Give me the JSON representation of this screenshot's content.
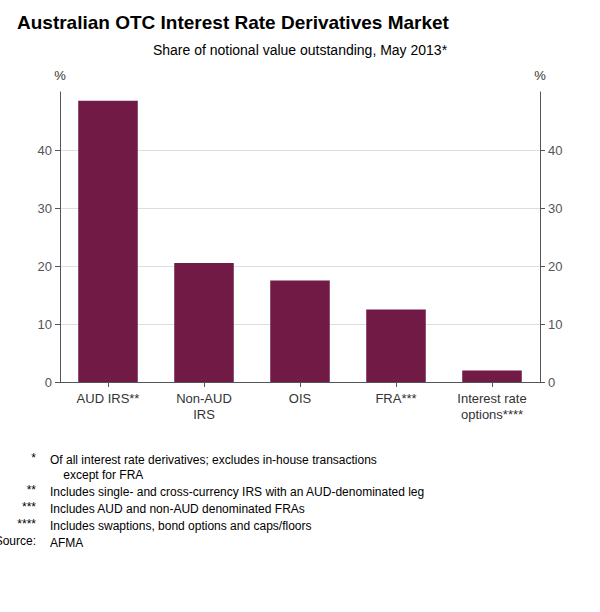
{
  "chart_data": {
    "type": "bar",
    "title": "Australian OTC Interest Rate Derivatives Market",
    "subtitle": "Share of notional value outstanding, May 2013*",
    "categories": [
      "AUD IRS**",
      "Non-AUD\nIRS",
      "OIS",
      "FRA***",
      "Interest rate\noptions****"
    ],
    "values": [
      48.5,
      20.5,
      17.5,
      12.5,
      2.0
    ],
    "color": "#701A45",
    "ylabel": "%",
    "y2label": "%",
    "ylim": [
      0,
      50
    ],
    "yticks": [
      0,
      10,
      20,
      30,
      40
    ],
    "y2lim": [
      0,
      50
    ],
    "y2ticks": [
      0,
      10,
      20,
      30,
      40
    ],
    "grid": true,
    "annotations": [
      {
        "label": "*",
        "text": "Of all interest rate derivatives; excludes in-house transactions\n    except for FRA"
      },
      {
        "label": "**",
        "text": "Includes single- and cross-currency IRS with an AUD-denominated leg"
      },
      {
        "label": "***",
        "text": "Includes AUD and non-AUD denominated FRAs"
      },
      {
        "label": "****",
        "text": "Includes swaptions, bond options and caps/floors"
      },
      {
        "label": "Source:",
        "text": "AFMA"
      }
    ]
  }
}
